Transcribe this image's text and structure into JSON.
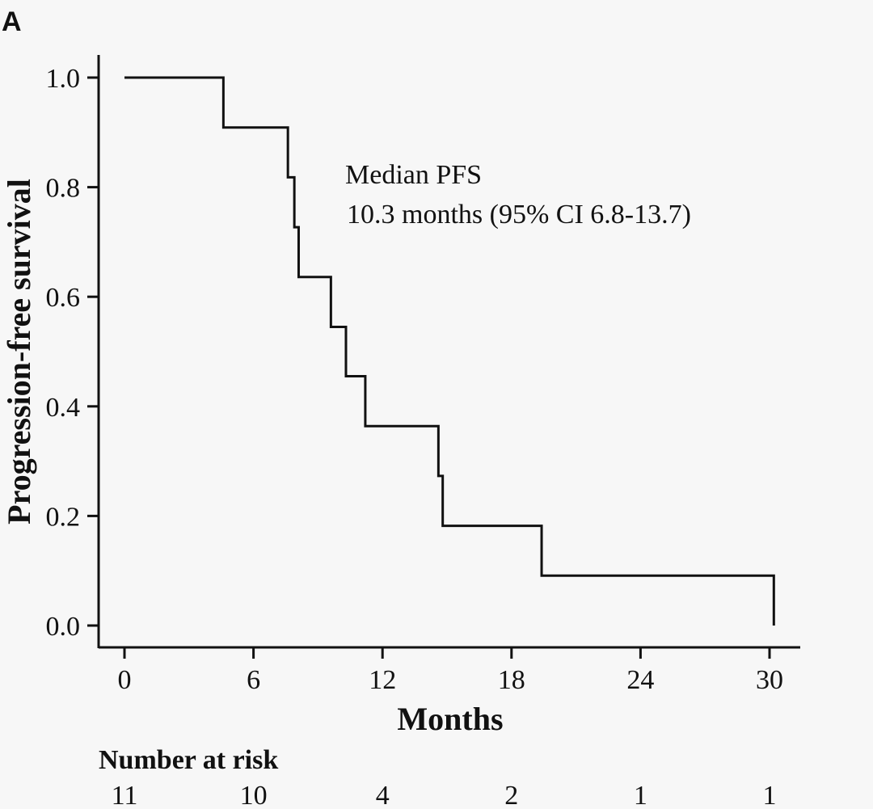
{
  "chart_data": {
    "type": "line",
    "panel_label": "A",
    "ylabel": "Progression-free survival",
    "xlabel": "Months",
    "xlim": [
      0,
      30
    ],
    "ylim": [
      0,
      1
    ],
    "x_ticks": [
      "0",
      "6",
      "12",
      "18",
      "24",
      "30"
    ],
    "y_ticks": [
      "0.0",
      "0.2",
      "0.4",
      "0.6",
      "0.8",
      "1.0"
    ],
    "x_tick_values": [
      0,
      6,
      12,
      18,
      24,
      30
    ],
    "y_tick_values": [
      0,
      0.2,
      0.4,
      0.6,
      0.8,
      1.0
    ],
    "annotation_line1": "Median PFS",
    "annotation_line2": "10.3 months (95% CI 6.8-13.7)",
    "series": [
      {
        "step_points": [
          [
            0,
            1.0
          ],
          [
            4.6,
            0.909
          ],
          [
            7.6,
            0.818
          ],
          [
            7.9,
            0.727
          ],
          [
            8.1,
            0.636
          ],
          [
            9.6,
            0.545
          ],
          [
            10.3,
            0.455
          ],
          [
            11.2,
            0.364
          ],
          [
            14.6,
            0.273
          ],
          [
            14.8,
            0.182
          ],
          [
            19.4,
            0.091
          ],
          [
            30.2,
            0.0
          ]
        ]
      }
    ],
    "risk_table": {
      "title": "Number at risk",
      "values": [
        "11",
        "10",
        "4",
        "2",
        "1",
        "1"
      ]
    }
  }
}
